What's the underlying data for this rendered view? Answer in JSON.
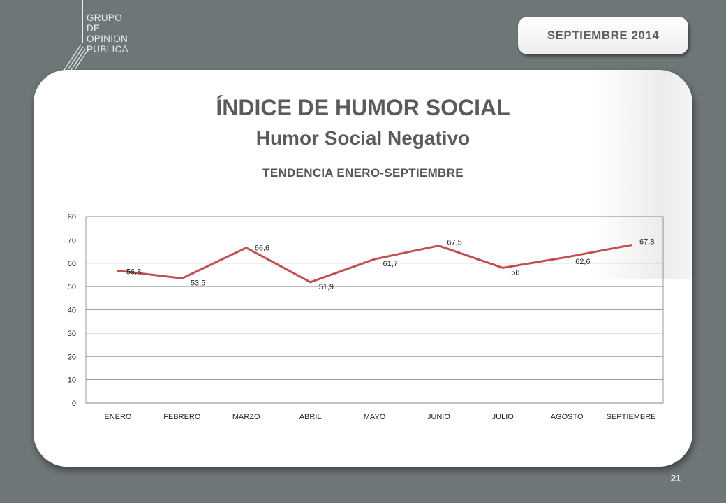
{
  "header": {
    "logo_lines": [
      "GRUPO",
      "DE",
      "OPINION",
      "PUBLICA"
    ],
    "date_badge": "SEPTIEMBRE  2014"
  },
  "slide": {
    "title": "ÍNDICE DE HUMOR SOCIAL",
    "subtitle": "Humor Social Negativo",
    "chart_title": "TENDENCIA ENERO-SEPTIEMBRE",
    "page_number": "21"
  },
  "colors": {
    "background": "#6f7677",
    "card": "#ffffff",
    "line": "#c0504d",
    "gridline": "#7f7f7f",
    "text": "#5b5b5b"
  },
  "chart_data": {
    "type": "line",
    "title": "TENDENCIA ENERO-SEPTIEMBRE",
    "categories": [
      "ENERO",
      "FEBRERO",
      "MARZO",
      "ABRIL",
      "MAYO",
      "JUNIO",
      "JULIO",
      "AGOSTO",
      "SEPTIEMBRE"
    ],
    "series": [
      {
        "values": [
          56.8,
          53.5,
          66.6,
          51.9,
          61.7,
          67.5,
          58,
          62.6,
          67.8
        ],
        "labels": [
          "56,8",
          "53,5",
          "66,6",
          "51,9",
          "61,7",
          "67,5",
          "58",
          "62,6",
          "67,8"
        ],
        "color": "#c0504d"
      }
    ],
    "ylim": [
      0,
      80
    ],
    "yticks": [
      0,
      10,
      20,
      30,
      40,
      50,
      60,
      70,
      80
    ],
    "grid": true,
    "legend": "none",
    "xlabel": "",
    "ylabel": ""
  }
}
